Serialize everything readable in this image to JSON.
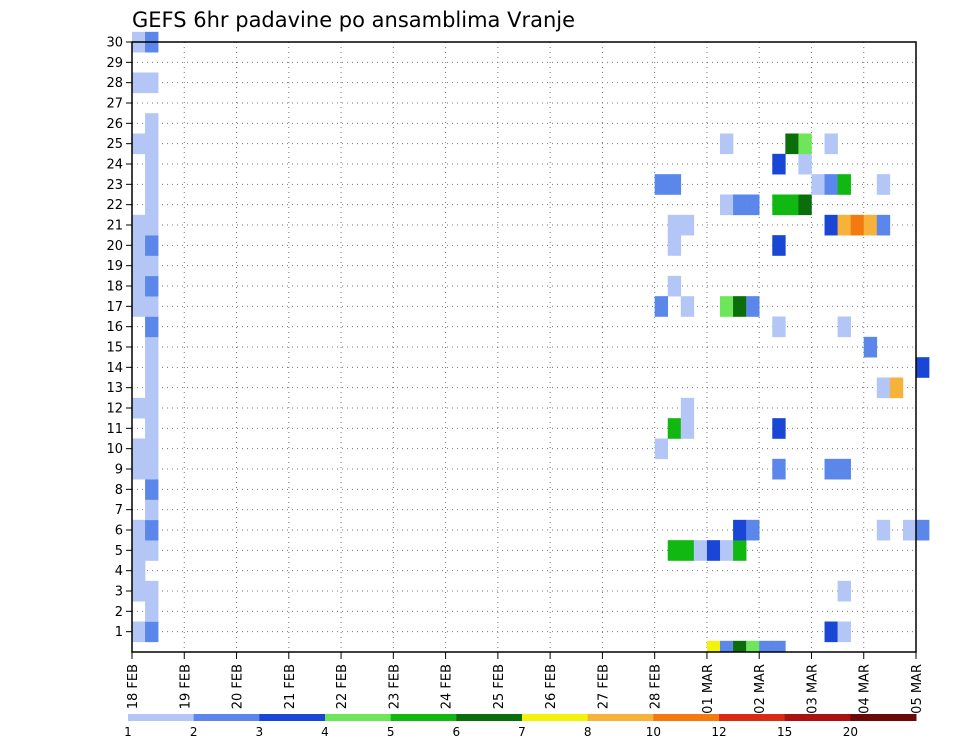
{
  "chart_data": {
    "type": "heatmap",
    "title": "GEFS 6hr padavine po ansamblima Vranje",
    "xlabel": "",
    "ylabel": "",
    "x_ticks": [
      "18 FEB",
      "19 FEB",
      "20 FEB",
      "21 FEB",
      "22 FEB",
      "23 FEB",
      "24 FEB",
      "25 FEB",
      "26 FEB",
      "27 FEB",
      "28 FEB",
      "01 MAR",
      "02 MAR",
      "03 MAR",
      "04 MAR",
      "05 MAR"
    ],
    "y_ticks": [
      "1",
      "2",
      "3",
      "4",
      "5",
      "6",
      "7",
      "8",
      "9",
      "10",
      "11",
      "12",
      "13",
      "14",
      "15",
      "16",
      "17",
      "18",
      "19",
      "20",
      "21",
      "22",
      "23",
      "24",
      "25",
      "26",
      "27",
      "28",
      "29",
      "30"
    ],
    "members": 30,
    "steps_per_day": 4,
    "grid": "dotted",
    "legend": {
      "placement": "bottom",
      "colors": [
        "#b3c6f5",
        "#5b86ea",
        "#1a46d6",
        "#6ee65a",
        "#12b812",
        "#0b6e0b",
        "#f2f20a",
        "#f7b23c",
        "#f27a0e",
        "#d92b12",
        "#a81210",
        "#6b0808"
      ],
      "labels": [
        "1",
        "2",
        "3",
        "4",
        "5",
        "6",
        "7",
        "8",
        "10",
        "12",
        "15",
        "20"
      ]
    },
    "cells": [
      [
        0,
        0,
        "#b3c6f5"
      ],
      [
        2,
        0,
        "#b3c6f5"
      ],
      [
        3,
        0,
        "#b3c6f5"
      ],
      [
        4,
        0,
        "#b3c6f5"
      ],
      [
        5,
        0,
        "#b3c6f5"
      ],
      [
        8,
        0,
        "#b3c6f5"
      ],
      [
        9,
        0,
        "#b3c6f5"
      ],
      [
        11,
        0,
        "#b3c6f5"
      ],
      [
        16,
        0,
        "#b3c6f5"
      ],
      [
        17,
        0,
        "#b3c6f5"
      ],
      [
        18,
        0,
        "#b3c6f5"
      ],
      [
        19,
        0,
        "#b3c6f5"
      ],
      [
        20,
        0,
        "#b3c6f5"
      ],
      [
        24,
        0,
        "#b3c6f5"
      ],
      [
        27,
        0,
        "#b3c6f5"
      ],
      [
        29,
        0,
        "#b3c6f5"
      ],
      [
        0,
        1,
        "#5b86ea"
      ],
      [
        1,
        1,
        "#b3c6f5"
      ],
      [
        2,
        1,
        "#b3c6f5"
      ],
      [
        4,
        1,
        "#b3c6f5"
      ],
      [
        5,
        1,
        "#5b86ea"
      ],
      [
        6,
        1,
        "#b3c6f5"
      ],
      [
        7,
        1,
        "#5b86ea"
      ],
      [
        8,
        1,
        "#b3c6f5"
      ],
      [
        9,
        1,
        "#b3c6f5"
      ],
      [
        10,
        1,
        "#b3c6f5"
      ],
      [
        11,
        1,
        "#b3c6f5"
      ],
      [
        12,
        1,
        "#b3c6f5"
      ],
      [
        13,
        1,
        "#b3c6f5"
      ],
      [
        14,
        1,
        "#b3c6f5"
      ],
      [
        15,
        1,
        "#5b86ea"
      ],
      [
        16,
        1,
        "#b3c6f5"
      ],
      [
        17,
        1,
        "#5b86ea"
      ],
      [
        18,
        1,
        "#b3c6f5"
      ],
      [
        19,
        1,
        "#5b86ea"
      ],
      [
        20,
        1,
        "#b3c6f5"
      ],
      [
        21,
        1,
        "#b3c6f5"
      ],
      [
        22,
        1,
        "#b3c6f5"
      ],
      [
        23,
        1,
        "#b3c6f5"
      ],
      [
        24,
        1,
        "#b3c6f5"
      ],
      [
        25,
        1,
        "#b3c6f5"
      ],
      [
        27,
        1,
        "#b3c6f5"
      ],
      [
        29,
        1,
        "#5b86ea"
      ],
      [
        22,
        40,
        "#5b86ea"
      ],
      [
        22,
        41,
        "#5b86ea"
      ],
      [
        16,
        40,
        "#5b86ea"
      ],
      [
        9,
        40,
        "#b3c6f5"
      ],
      [
        4,
        41,
        "#12b812"
      ],
      [
        10,
        41,
        "#12b812"
      ],
      [
        17,
        41,
        "#b3c6f5"
      ],
      [
        19,
        41,
        "#b3c6f5"
      ],
      [
        20,
        41,
        "#b3c6f5"
      ],
      [
        4,
        42,
        "#12b812"
      ],
      [
        20,
        42,
        "#b3c6f5"
      ],
      [
        16,
        42,
        "#b3c6f5"
      ],
      [
        10,
        42,
        "#b3c6f5"
      ],
      [
        11,
        42,
        "#b3c6f5"
      ],
      [
        4,
        43,
        "#b3c6f5"
      ],
      [
        4,
        44,
        "#1a46d6"
      ],
      [
        4,
        45,
        "#b3c6f5"
      ],
      [
        16,
        45,
        "#6ee65a"
      ],
      [
        21,
        45,
        "#b3c6f5"
      ],
      [
        24,
        45,
        "#b3c6f5"
      ],
      [
        4,
        46,
        "#12b812"
      ],
      [
        5,
        46,
        "#1a46d6"
      ],
      [
        16,
        46,
        "#0b6e0b"
      ],
      [
        21,
        46,
        "#5b86ea"
      ],
      [
        5,
        47,
        "#5b86ea"
      ],
      [
        16,
        47,
        "#5b86ea"
      ],
      [
        21,
        47,
        "#5b86ea"
      ],
      [
        10,
        49,
        "#1a46d6"
      ],
      [
        15,
        49,
        "#b3c6f5"
      ],
      [
        19,
        49,
        "#1a46d6"
      ],
      [
        23,
        49,
        "#1a46d6"
      ],
      [
        8,
        49,
        "#5b86ea"
      ],
      [
        21,
        49,
        "#12b812"
      ],
      [
        24,
        50,
        "#0b6e0b"
      ],
      [
        21,
        50,
        "#12b812"
      ],
      [
        23,
        51,
        "#b3c6f5"
      ],
      [
        24,
        51,
        "#6ee65a"
      ],
      [
        21,
        51,
        "#0b6e0b"
      ],
      [
        22,
        52,
        "#b3c6f5"
      ],
      [
        22,
        53,
        "#5b86ea"
      ],
      [
        8,
        53,
        "#5b86ea"
      ],
      [
        24,
        53,
        "#b3c6f5"
      ],
      [
        22,
        54,
        "#12b812"
      ],
      [
        8,
        54,
        "#5b86ea"
      ],
      [
        0,
        53,
        "#1a46d6"
      ],
      [
        20,
        53,
        "#1a46d6"
      ],
      [
        0,
        54,
        "#b3c6f5"
      ],
      [
        2,
        54,
        "#b3c6f5"
      ],
      [
        15,
        54,
        "#b3c6f5"
      ],
      [
        20,
        54,
        "#f7b23c"
      ],
      [
        20,
        55,
        "#f27a0e"
      ],
      [
        20,
        56,
        "#f7b23c"
      ],
      [
        14,
        56,
        "#5b86ea"
      ],
      [
        5,
        57,
        "#b3c6f5"
      ],
      [
        12,
        57,
        "#b3c6f5"
      ],
      [
        20,
        57,
        "#5b86ea"
      ],
      [
        22,
        57,
        "#b3c6f5"
      ],
      [
        12,
        58,
        "#f7b23c"
      ],
      [
        5,
        59,
        "#b3c6f5"
      ],
      [
        5,
        60,
        "#5b86ea"
      ],
      [
        13,
        60,
        "#1a46d6"
      ]
    ],
    "bottom_strip": [
      [
        44,
        "#f2f20a"
      ],
      [
        45,
        "#5b86ea"
      ],
      [
        46,
        "#0b6e0b"
      ],
      [
        47,
        "#6ee65a"
      ],
      [
        48,
        "#5b86ea"
      ],
      [
        49,
        "#5b86ea"
      ]
    ]
  }
}
